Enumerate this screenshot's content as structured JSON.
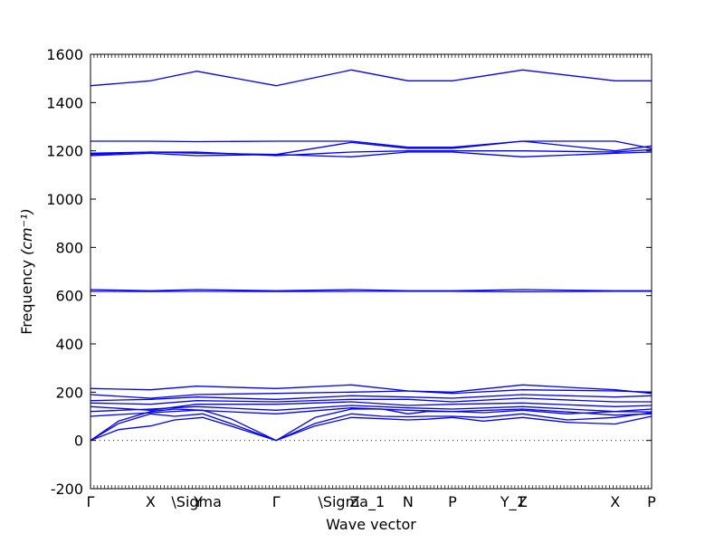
{
  "chart_data": {
    "type": "line",
    "title": "",
    "xlabel": "Wave vector",
    "ylabel": "Frequency",
    "ylabel_unit": "(cm⁻¹)",
    "ylim": [
      -200,
      1600
    ],
    "yticks": [
      -200,
      0,
      200,
      400,
      600,
      800,
      1000,
      1200,
      1400,
      1600
    ],
    "xlim": [
      0,
      1.0
    ],
    "high_symmetry_points": [
      {
        "label": "Γ",
        "x": 0.0
      },
      {
        "label": "X",
        "x": 0.107
      },
      {
        "label": "\\Sigma",
        "x": 0.189
      },
      {
        "label": "Y",
        "x": 0.192
      },
      {
        "label": "Γ",
        "x": 0.331
      },
      {
        "label": "\\Sigma_1",
        "x": 0.465
      },
      {
        "label": "Z",
        "x": 0.471
      },
      {
        "label": "N",
        "x": 0.566
      },
      {
        "label": "P",
        "x": 0.645
      },
      {
        "label": "Y_1",
        "x": 0.753
      },
      {
        "label": "Z",
        "x": 0.77
      },
      {
        "label": "X",
        "x": 0.935
      },
      {
        "label": "P",
        "x": 1.0
      }
    ],
    "series": [
      {
        "x": [
          0,
          0.05,
          0.107,
          0.15,
          0.2,
          0.25,
          0.331,
          0.4,
          0.465,
          0.52,
          0.566,
          0.6,
          0.645,
          0.7,
          0.77,
          0.85,
          0.935,
          1.0
        ],
        "values": [
          0,
          45,
          60,
          85,
          95,
          60,
          0,
          60,
          95,
          90,
          85,
          88,
          95,
          80,
          95,
          75,
          68,
          100
        ]
      },
      {
        "x": [
          0,
          0.05,
          0.107,
          0.15,
          0.2,
          0.25,
          0.331,
          0.4,
          0.465,
          0.52,
          0.566,
          0.6,
          0.645,
          0.7,
          0.77,
          0.85,
          0.935,
          1.0
        ],
        "values": [
          0,
          70,
          110,
          100,
          110,
          70,
          0,
          70,
          110,
          100,
          98,
          100,
          100,
          95,
          110,
          85,
          95,
          115
        ]
      },
      {
        "x": [
          0,
          0.05,
          0.107,
          0.15,
          0.2,
          0.25,
          0.331,
          0.4,
          0.465,
          0.52,
          0.566,
          0.6,
          0.645,
          0.7,
          0.77,
          0.85,
          0.935,
          1.0
        ],
        "values": [
          0,
          80,
          120,
          130,
          125,
          90,
          0,
          95,
          130,
          130,
          110,
          120,
          120,
          115,
          125,
          110,
          120,
          118
        ]
      },
      {
        "x": [
          0,
          0.107,
          0.189,
          0.331,
          0.465,
          0.566,
          0.645,
          0.77,
          0.935,
          1.0
        ],
        "values": [
          100,
          115,
          125,
          110,
          135,
          125,
          120,
          130,
          105,
          110
        ]
      },
      {
        "x": [
          0,
          0.107,
          0.189,
          0.331,
          0.465,
          0.566,
          0.645,
          0.77,
          0.935,
          1.0
        ],
        "values": [
          120,
          130,
          140,
          125,
          145,
          135,
          130,
          140,
          120,
          130
        ]
      },
      {
        "x": [
          0,
          0.107,
          0.189,
          0.331,
          0.465,
          0.566,
          0.645,
          0.77,
          0.935,
          1.0
        ],
        "values": [
          140,
          125,
          150,
          150,
          160,
          145,
          150,
          155,
          140,
          145
        ]
      },
      {
        "x": [
          0,
          0.107,
          0.189,
          0.331,
          0.465,
          0.566,
          0.645,
          0.77,
          0.935,
          1.0
        ],
        "values": [
          155,
          150,
          165,
          160,
          170,
          170,
          160,
          175,
          160,
          160
        ]
      },
      {
        "x": [
          0,
          0.107,
          0.189,
          0.331,
          0.465,
          0.566,
          0.645,
          0.77,
          0.935,
          1.0
        ],
        "values": [
          165,
          170,
          180,
          170,
          185,
          180,
          175,
          190,
          180,
          185
        ]
      },
      {
        "x": [
          0,
          0.107,
          0.189,
          0.331,
          0.465,
          0.566,
          0.645,
          0.77,
          0.935,
          1.0
        ],
        "values": [
          190,
          175,
          190,
          195,
          200,
          205,
          195,
          210,
          205,
          200
        ]
      },
      {
        "x": [
          0,
          0.107,
          0.189,
          0.331,
          0.465,
          0.566,
          0.645,
          0.77,
          0.935,
          1.0
        ],
        "values": [
          215,
          210,
          225,
          215,
          230,
          205,
          200,
          230,
          210,
          195
        ]
      },
      {
        "x": [
          0,
          0.107,
          0.189,
          0.331,
          0.465,
          0.566,
          0.645,
          0.77,
          0.935,
          1.0
        ],
        "values": [
          625,
          620,
          625,
          620,
          625,
          620,
          620,
          625,
          620,
          620
        ]
      },
      {
        "x": [
          0,
          0.107,
          0.189,
          0.331,
          0.465,
          0.566,
          0.645,
          0.77,
          0.935,
          1.0
        ],
        "values": [
          618,
          617,
          618,
          617,
          618,
          618,
          618,
          616,
          618,
          618
        ]
      },
      {
        "x": [
          0,
          0.107,
          0.189,
          0.331,
          0.465,
          0.566,
          0.645,
          0.77,
          0.935,
          1.0
        ],
        "values": [
          1180,
          1190,
          1180,
          1185,
          1175,
          1195,
          1195,
          1175,
          1190,
          1195
        ]
      },
      {
        "x": [
          0,
          0.107,
          0.189,
          0.331,
          0.465,
          0.566,
          0.645,
          0.77,
          0.935,
          1.0
        ],
        "values": [
          1185,
          1195,
          1195,
          1180,
          1195,
          1200,
          1200,
          1200,
          1195,
          1205
        ]
      },
      {
        "x": [
          0,
          0.107,
          0.189,
          0.331,
          0.465,
          0.566,
          0.645,
          0.77,
          0.935,
          1.0
        ],
        "values": [
          1190,
          1195,
          1190,
          1185,
          1235,
          1210,
          1210,
          1240,
          1240,
          1210
        ]
      },
      {
        "x": [
          0,
          0.107,
          0.189,
          0.331,
          0.465,
          0.566,
          0.645,
          0.77,
          0.935,
          1.0
        ],
        "values": [
          1240,
          1240,
          1238,
          1240,
          1240,
          1215,
          1215,
          1240,
          1200,
          1220
        ]
      },
      {
        "x": [
          0,
          0.107,
          0.189,
          0.331,
          0.465,
          0.566,
          0.645,
          0.77,
          0.935,
          1.0
        ],
        "values": [
          1470,
          1490,
          1530,
          1470,
          1535,
          1490,
          1490,
          1535,
          1490,
          1490
        ]
      }
    ]
  }
}
